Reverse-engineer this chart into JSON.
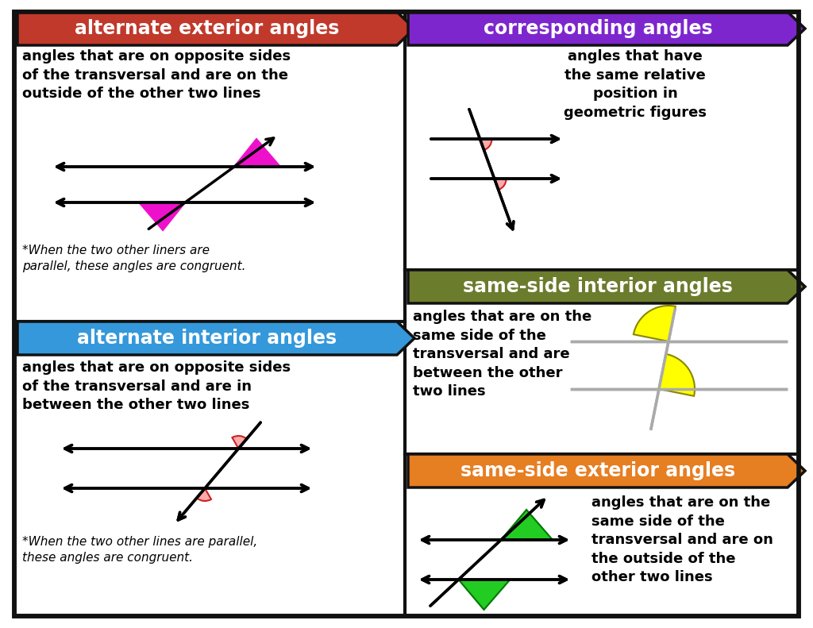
{
  "bg_color": "#ffffff",
  "title_alt_ext": "alternate exterior angles",
  "title_corr": "corresponding angles",
  "title_alt_int": "alternate interior angles",
  "title_same_int": "same-side interior angles",
  "title_same_ext": "same-side exterior angles",
  "color_alt_ext": "#c0392b",
  "color_corr": "#7d26cd",
  "color_alt_int": "#3498db",
  "color_same_int": "#6b7c2d",
  "color_same_ext": "#e67e22",
  "desc_alt_ext": "angles that are on opposite sides\nof the transversal and are on the\noutside of the other two lines",
  "desc_corr": "angles that have\nthe same relative\nposition in\ngeometric figures",
  "desc_alt_int": "angles that are on opposite sides\nof the transversal and are in\nbetween the other two lines",
  "desc_same_int": "angles that are on the\nsame side of the\ntransversal and are\nbetween the other\ntwo lines",
  "desc_same_ext": "angles that are on the\nsame side of the\ntransversal and are on\nthe outside of the\nother two lines",
  "note_alt_ext": "*When the two other liners are\nparallel, these angles are congruent.",
  "note_alt_int": "*When the two other lines are parallel,\nthese angles are congruent."
}
